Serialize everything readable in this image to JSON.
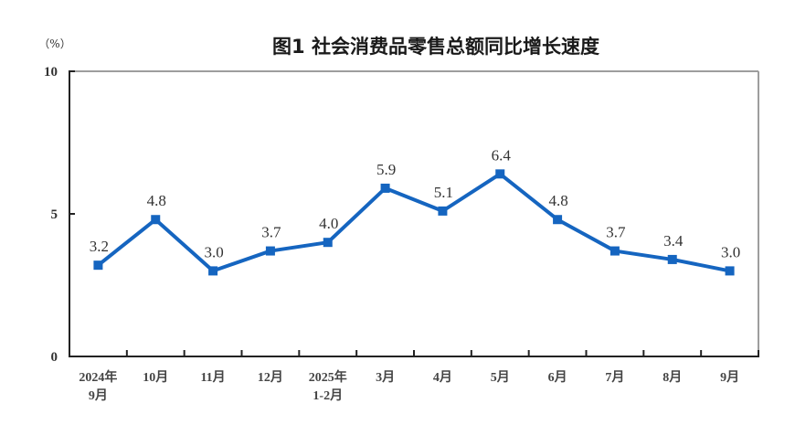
{
  "chart_data": {
    "type": "line",
    "title": "图1  社会消费品零售总额同比增长速度",
    "unit_label": "（%）",
    "xlabel": "",
    "ylabel": "（%）",
    "ylim": [
      0,
      10
    ],
    "yticks": [
      "0",
      "5",
      "10"
    ],
    "grid": false,
    "legend": null,
    "categories": [
      [
        "2024年",
        "9月"
      ],
      [
        "10月"
      ],
      [
        "11月"
      ],
      [
        "12月"
      ],
      [
        "2025年",
        "1-2月"
      ],
      [
        "3月"
      ],
      [
        "4月"
      ],
      [
        "5月"
      ],
      [
        "6月"
      ],
      [
        "7月"
      ],
      [
        "8月"
      ],
      [
        "9月"
      ]
    ],
    "series": [
      {
        "name": "社会消费品零售总额同比增长速度",
        "color": "#1565C0",
        "values": [
          3.2,
          4.8,
          3.0,
          3.7,
          4.0,
          5.9,
          5.1,
          6.4,
          4.8,
          3.7,
          3.4,
          3.0
        ],
        "labels": [
          "3.2",
          "4.8",
          "3.0",
          "3.7",
          "4.0",
          "5.9",
          "5.1",
          "6.4",
          "4.8",
          "3.7",
          "3.4",
          "3.0"
        ]
      }
    ]
  },
  "colors": {
    "line": "#1565C0",
    "axis": "#222222",
    "frame": "#9e9e9e"
  }
}
